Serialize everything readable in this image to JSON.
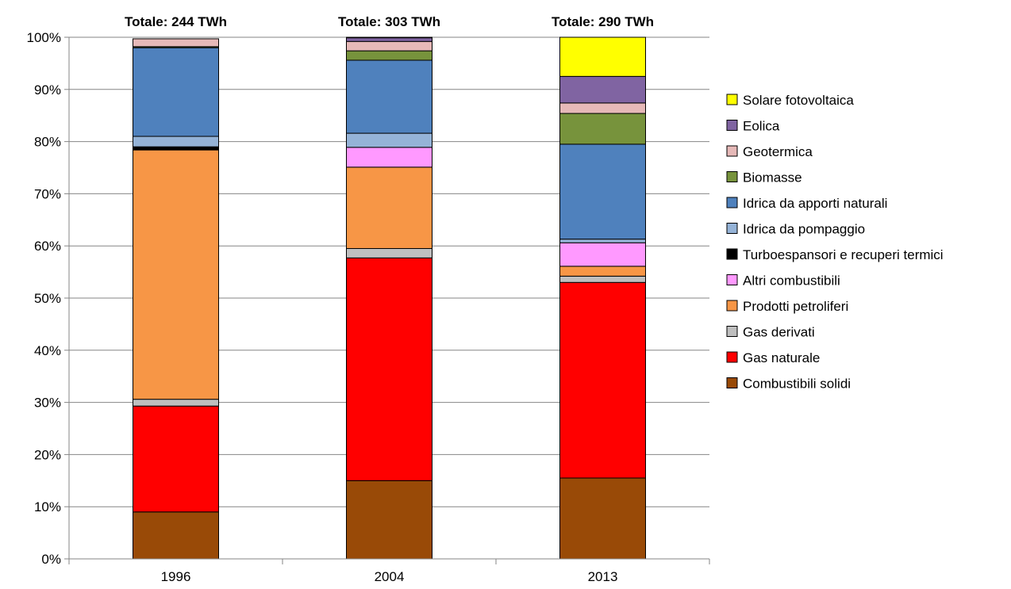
{
  "chart_data": {
    "type": "bar",
    "stacked": true,
    "categories": [
      "1996",
      "2004",
      "2013"
    ],
    "totals": [
      "Totale: 244 TWh",
      "Totale: 303 TWh",
      "Totale: 290 TWh"
    ],
    "ylim": [
      0,
      100
    ],
    "yticks": [
      "0%",
      "10%",
      "20%",
      "30%",
      "40%",
      "50%",
      "60%",
      "70%",
      "80%",
      "90%",
      "100%"
    ],
    "grid": true,
    "legend_position": "right",
    "series": [
      {
        "name": "Combustibili solidi",
        "color": "#994a07",
        "values": [
          9.0,
          15.0,
          15.5
        ]
      },
      {
        "name": "Gas naturale",
        "color": "#ff0000",
        "values": [
          20.3,
          42.7,
          37.5
        ]
      },
      {
        "name": "Gas derivati",
        "color": "#bfbfbf",
        "values": [
          1.3,
          1.8,
          1.2
        ]
      },
      {
        "name": "Prodotti petroliferi",
        "color": "#f79646",
        "values": [
          47.8,
          15.6,
          1.9
        ]
      },
      {
        "name": "Altri combustibili",
        "color": "#ff99ff",
        "values": [
          0.1,
          3.8,
          4.5
        ]
      },
      {
        "name": "Turboespansori e recuperi termici",
        "color": "#000000",
        "values": [
          0.5,
          0.0,
          0.0
        ]
      },
      {
        "name": "Idrica da pompaggio",
        "color": "#95b3d7",
        "values": [
          2.0,
          2.7,
          0.7
        ]
      },
      {
        "name": "Idrica da apporti naturali",
        "color": "#4f81bd",
        "values": [
          17.0,
          14.0,
          18.2
        ]
      },
      {
        "name": "Biomasse",
        "color": "#77933c",
        "values": [
          0.2,
          1.8,
          5.9
        ]
      },
      {
        "name": "Geotermica",
        "color": "#e6b9b8",
        "values": [
          1.5,
          1.8,
          2.0
        ]
      },
      {
        "name": "Eolica",
        "color": "#8064a2",
        "values": [
          0.0,
          0.7,
          5.1
        ]
      },
      {
        "name": "Solare fotovoltaica",
        "color": "#ffff00",
        "values": [
          0.0,
          0.1,
          7.5
        ]
      }
    ]
  }
}
